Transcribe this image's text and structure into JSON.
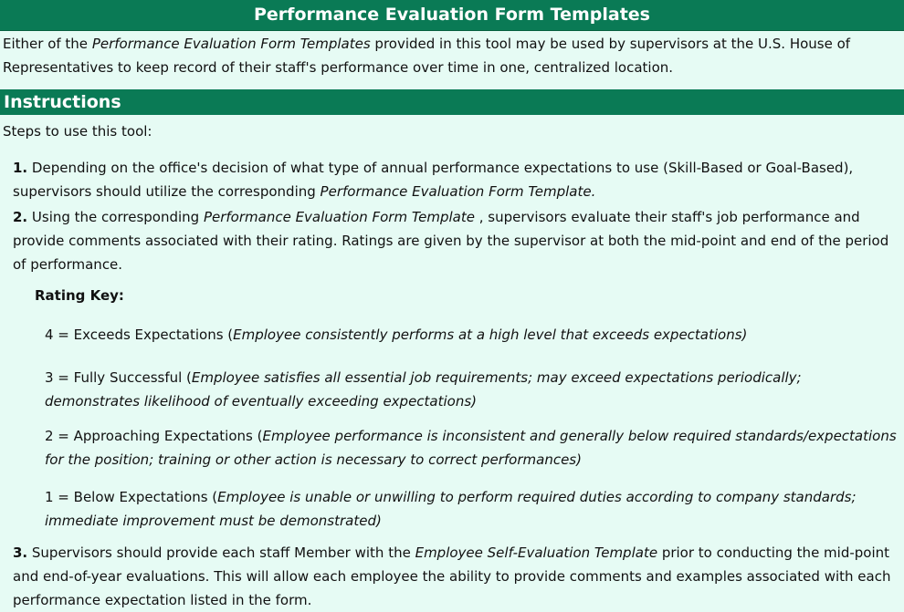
{
  "header": {
    "title": "Performance Evaluation Form Templates"
  },
  "intro": {
    "part1": "Either of the ",
    "italic": "Performance Evaluation Form Templates",
    "part2": "  provided in this tool may be used by supervisors at the U.S. House of Representatives to keep record of their staff's performance over time in one, centralized location."
  },
  "instructions": {
    "heading": "Instructions",
    "steps_intro": "Steps to use this tool:",
    "step1": {
      "num": "1.",
      "text1": " Depending on the office's decision of what type of annual performance expectations to use (Skill-Based or Goal-Based), supervisors should utilize the corresponding ",
      "italic": "Performance Evaluation Form Template.",
      "text2": ""
    },
    "step2": {
      "num": "2.",
      "text1": " Using the corresponding ",
      "italic": "Performance Evaluation Form Template",
      "text2": " , supervisors evaluate their staff's job performance and provide comments associated with their rating. Ratings are given by the supervisor at both the mid-point and end of the period of performance."
    },
    "rating_key_label": "Rating Key:",
    "ratings": [
      {
        "label": "4 = Exceeds Expectations (",
        "desc": "Employee consistently performs at a high level that exceeds expectations)"
      },
      {
        "label": "3 = Fully Successful (",
        "desc": "Employee satisfies all essential job requirements; may exceed expectations periodically; demonstrates likelihood of eventually exceeding expectations)"
      },
      {
        "label": "2 = Approaching Expectations (",
        "desc": "Employee performance is inconsistent and generally below required standards/expectations for the position; training or other action is necessary to correct performances)"
      },
      {
        "label": "1 = Below Expectations (",
        "desc": "Employee is unable or unwilling to perform required duties according to company standards; immediate improvement must be demonstrated)"
      }
    ],
    "step3": {
      "num": "3.",
      "text1": " Supervisors should provide each staff Member with the ",
      "italic": "Employee Self-Evaluation Template",
      "text2": "  prior to conducting the mid-point and end-of-year evaluations. This will allow each employee the ability to provide comments and examples associated with each performance expectation listed in the form."
    }
  }
}
